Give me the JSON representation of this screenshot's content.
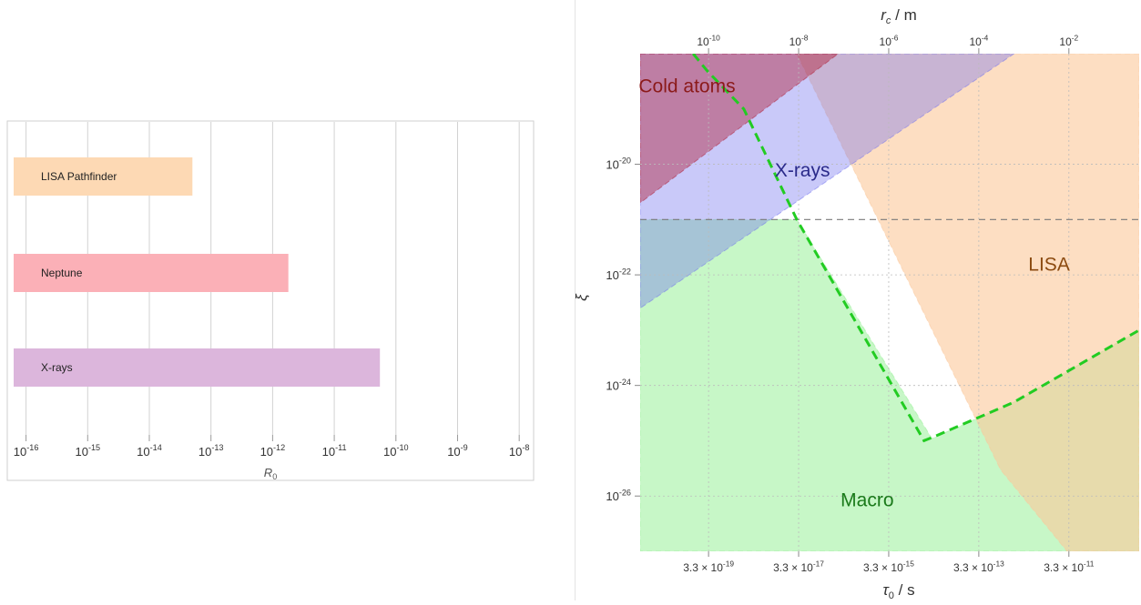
{
  "chart_data": [
    {
      "type": "bar",
      "orientation": "horizontal",
      "scale": "log",
      "xlabel": "R",
      "xlabel_sub": "0",
      "xlim": [
        6.3e-17,
        1.6e-08
      ],
      "grid": "vertical",
      "tick_exponents": [
        "-16",
        "-15",
        "-14",
        "-13",
        "-12",
        "-11",
        "-10",
        "-9",
        "-8"
      ],
      "tick_values": [
        1e-16,
        1e-15,
        1e-14,
        1e-13,
        1e-12,
        1e-11,
        1e-10,
        1e-09,
        1e-08
      ],
      "tick_base": "10",
      "bars": [
        {
          "label": "LISA Pathfinder",
          "value": 5e-14,
          "color": "#fdd9b4"
        },
        {
          "label": "Neptune",
          "value": 1.8e-12,
          "color": "#fbb0b7"
        },
        {
          "label": "X-rays",
          "value": 5.5e-11,
          "color": "#dcb6dc"
        }
      ]
    },
    {
      "type": "area",
      "scale": "log-log",
      "ylabel": "ξ",
      "xlabel_bottom": "τ",
      "xlabel_bottom_sub": "0",
      "xlabel_bottom_unit": " / s",
      "xlabel_top": "r",
      "xlabel_top_sub": "c",
      "xlabel_top_unit": " / m",
      "xlim": [
        1e-20,
        1.2e-09
      ],
      "ylim": [
        1e-27,
        1e-18
      ],
      "y_ticks": {
        "base": "10",
        "exponents": [
          "-20",
          "-22",
          "-24",
          "-26"
        ],
        "values": [
          1e-20,
          1e-22,
          1e-24,
          1e-26
        ]
      },
      "x_ticks_bottom": {
        "mantissa": "3.3 × 10",
        "exponents": [
          "-19",
          "-17",
          "-15",
          "-13",
          "-11"
        ],
        "values": [
          3.3e-19,
          3.3e-17,
          3.3e-15,
          3.3e-13,
          3.3e-11
        ]
      },
      "x_ticks_top": {
        "base": "10",
        "exponents": [
          "-10",
          "-8",
          "-6",
          "-4",
          "-2"
        ],
        "values": [
          3.3e-19,
          3.3e-17,
          3.3e-15,
          3.3e-13,
          3.3e-11
        ]
      },
      "dashed_reference_y": 1e-21,
      "regions": [
        {
          "name": "Cold atoms",
          "color": "#b01830",
          "label_color": "#8b1a1a",
          "polygon": [
            [
              1e-20,
              1e-18
            ],
            [
              2.5e-16,
              1e-18
            ],
            [
              1e-20,
              2e-21
            ]
          ]
        },
        {
          "name": "X-rays",
          "color": "#7070f0",
          "label_color": "#2a2a8a",
          "polygon": [
            [
              1e-20,
              1e-18
            ],
            [
              2e-12,
              1e-18
            ],
            [
              1e-20,
              2.5e-23
            ]
          ]
        },
        {
          "name": "LISA",
          "color": "#fcc89a",
          "label_color": "#8b4a10",
          "polygon": [
            [
              3e-17,
              1e-18
            ],
            [
              1.2e-09,
              1e-18
            ],
            [
              1.2e-09,
              1e-27
            ],
            [
              3e-11,
              1e-27
            ],
            [
              1e-12,
              3e-26
            ]
          ]
        },
        {
          "name": "Macro",
          "color": "#90f090",
          "label_color": "#1a7a1a",
          "polygon": [
            [
              1e-20,
              1e-21
            ],
            [
              3e-17,
              1e-21
            ],
            [
              3e-14,
              1.1e-25
            ],
            [
              2e-12,
              5e-25
            ],
            [
              1.2e-09,
              1e-23
            ],
            [
              1.2e-09,
              1e-27
            ],
            [
              1e-20,
              1e-27
            ]
          ]
        }
      ],
      "boundary_curve": {
        "color": "#22cc22",
        "points": [
          [
            1.5e-19,
            1e-18
          ],
          [
            3e-19,
            5e-19
          ],
          [
            2e-18,
            1e-19
          ],
          [
            3e-17,
            1e-21
          ],
          [
            2e-14,
            1e-25
          ],
          [
            3.5e-14,
            1.2e-25
          ],
          [
            2e-12,
            5e-25
          ],
          [
            1.2e-09,
            1e-23
          ]
        ]
      }
    }
  ]
}
